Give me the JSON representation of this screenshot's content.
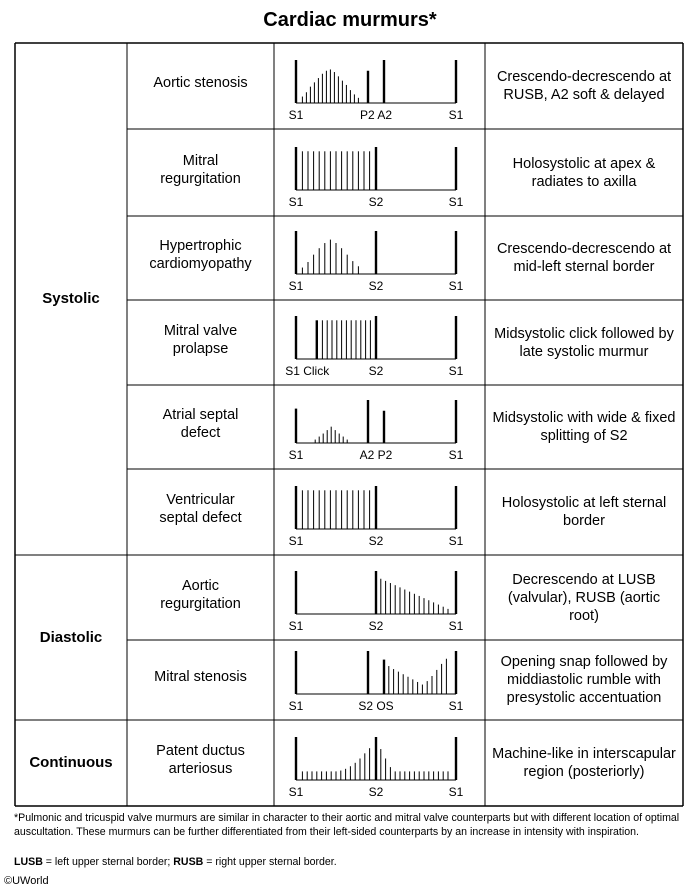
{
  "title": "Cardiac murmurs*",
  "groups": [
    {
      "label": "Systolic",
      "rows": [
        0,
        1,
        2,
        3,
        4,
        5
      ]
    },
    {
      "label": "Diastolic",
      "rows": [
        6,
        7
      ]
    },
    {
      "label": "Continuous",
      "rows": [
        8
      ]
    }
  ],
  "rows": [
    {
      "name": "Aortic stenosis",
      "description": "Crescendo-decrescendo at RUSB, A2 soft & delayed",
      "waveform": {
        "lines": [
          {
            "x": 0,
            "h": 1
          },
          {
            "x": 0.45,
            "h": 0.75
          },
          {
            "x": 0.55,
            "h": 1
          },
          {
            "x": 1,
            "h": 1
          }
        ],
        "murmur": [
          {
            "x": 0.04,
            "h": 0.15
          },
          {
            "x": 0.065,
            "h": 0.25
          },
          {
            "x": 0.09,
            "h": 0.38
          },
          {
            "x": 0.115,
            "h": 0.48
          },
          {
            "x": 0.14,
            "h": 0.58
          },
          {
            "x": 0.165,
            "h": 0.68
          },
          {
            "x": 0.19,
            "h": 0.75
          },
          {
            "x": 0.215,
            "h": 0.78
          },
          {
            "x": 0.24,
            "h": 0.72
          },
          {
            "x": 0.265,
            "h": 0.62
          },
          {
            "x": 0.29,
            "h": 0.52
          },
          {
            "x": 0.315,
            "h": 0.42
          },
          {
            "x": 0.34,
            "h": 0.3
          },
          {
            "x": 0.365,
            "h": 0.2
          },
          {
            "x": 0.39,
            "h": 0.12
          }
        ],
        "labels": [
          {
            "text": "S1",
            "x": 0
          },
          {
            "text": "P2 A2",
            "x": 0.5
          },
          {
            "text": "S1",
            "x": 1
          }
        ]
      }
    },
    {
      "name": "Mitral regurgitation",
      "description": "Holosystolic at apex & radiates to axilla",
      "waveform": {
        "lines": [
          {
            "x": 0,
            "h": 1
          },
          {
            "x": 0.5,
            "h": 1
          },
          {
            "x": 1,
            "h": 1
          }
        ],
        "murmur": [
          {
            "x": 0.04,
            "h": 0.9
          },
          {
            "x": 0.075,
            "h": 0.9
          },
          {
            "x": 0.11,
            "h": 0.9
          },
          {
            "x": 0.145,
            "h": 0.9
          },
          {
            "x": 0.18,
            "h": 0.9
          },
          {
            "x": 0.215,
            "h": 0.9
          },
          {
            "x": 0.25,
            "h": 0.9
          },
          {
            "x": 0.285,
            "h": 0.9
          },
          {
            "x": 0.32,
            "h": 0.9
          },
          {
            "x": 0.355,
            "h": 0.9
          },
          {
            "x": 0.39,
            "h": 0.9
          },
          {
            "x": 0.425,
            "h": 0.9
          },
          {
            "x": 0.46,
            "h": 0.9
          }
        ],
        "labels": [
          {
            "text": "S1",
            "x": 0
          },
          {
            "text": "S2",
            "x": 0.5
          },
          {
            "text": "S1",
            "x": 1
          }
        ]
      }
    },
    {
      "name": "Hypertrophic cardiomyopathy",
      "description": "Crescendo-decrescendo at mid-left sternal border",
      "waveform": {
        "lines": [
          {
            "x": 0,
            "h": 1
          },
          {
            "x": 0.5,
            "h": 1
          },
          {
            "x": 1,
            "h": 1
          }
        ],
        "murmur": [
          {
            "x": 0.04,
            "h": 0.15
          },
          {
            "x": 0.075,
            "h": 0.28
          },
          {
            "x": 0.11,
            "h": 0.45
          },
          {
            "x": 0.145,
            "h": 0.6
          },
          {
            "x": 0.18,
            "h": 0.72
          },
          {
            "x": 0.215,
            "h": 0.8
          },
          {
            "x": 0.25,
            "h": 0.72
          },
          {
            "x": 0.285,
            "h": 0.6
          },
          {
            "x": 0.32,
            "h": 0.45
          },
          {
            "x": 0.355,
            "h": 0.3
          },
          {
            "x": 0.39,
            "h": 0.18
          }
        ],
        "labels": [
          {
            "text": "S1",
            "x": 0
          },
          {
            "text": "S2",
            "x": 0.5
          },
          {
            "text": "S1",
            "x": 1
          }
        ]
      }
    },
    {
      "name": "Mitral valve prolapse",
      "description": "Midsystolic click followed by late systolic murmur",
      "waveform": {
        "lines": [
          {
            "x": 0,
            "h": 1
          },
          {
            "x": 0.13,
            "h": 0.9
          },
          {
            "x": 0.5,
            "h": 1
          },
          {
            "x": 1,
            "h": 1
          }
        ],
        "murmur": [
          {
            "x": 0.165,
            "h": 0.9
          },
          {
            "x": 0.195,
            "h": 0.9
          },
          {
            "x": 0.225,
            "h": 0.9
          },
          {
            "x": 0.255,
            "h": 0.9
          },
          {
            "x": 0.285,
            "h": 0.9
          },
          {
            "x": 0.315,
            "h": 0.9
          },
          {
            "x": 0.345,
            "h": 0.9
          },
          {
            "x": 0.375,
            "h": 0.9
          },
          {
            "x": 0.405,
            "h": 0.9
          },
          {
            "x": 0.435,
            "h": 0.9
          },
          {
            "x": 0.465,
            "h": 0.9
          }
        ],
        "labels": [
          {
            "text": "S1 Click",
            "x": 0.07
          },
          {
            "text": "S2",
            "x": 0.5
          },
          {
            "text": "S1",
            "x": 1
          }
        ]
      }
    },
    {
      "name": "Atrial septal defect",
      "description": "Midsystolic with wide & fixed splitting of S2",
      "waveform": {
        "lines": [
          {
            "x": 0,
            "h": 0.8
          },
          {
            "x": 0.45,
            "h": 1
          },
          {
            "x": 0.55,
            "h": 0.75
          },
          {
            "x": 1,
            "h": 1
          }
        ],
        "murmur": [
          {
            "x": 0.12,
            "h": 0.08
          },
          {
            "x": 0.145,
            "h": 0.15
          },
          {
            "x": 0.17,
            "h": 0.22
          },
          {
            "x": 0.195,
            "h": 0.3
          },
          {
            "x": 0.22,
            "h": 0.38
          },
          {
            "x": 0.245,
            "h": 0.3
          },
          {
            "x": 0.27,
            "h": 0.22
          },
          {
            "x": 0.295,
            "h": 0.15
          },
          {
            "x": 0.32,
            "h": 0.08
          }
        ],
        "labels": [
          {
            "text": "S1",
            "x": 0
          },
          {
            "text": "A2 P2",
            "x": 0.5
          },
          {
            "text": "S1",
            "x": 1
          }
        ]
      }
    },
    {
      "name": "Ventricular septal defect",
      "description": "Holosystolic at left sternal border",
      "waveform": {
        "lines": [
          {
            "x": 0,
            "h": 1
          },
          {
            "x": 0.5,
            "h": 1
          },
          {
            "x": 1,
            "h": 1
          }
        ],
        "murmur": [
          {
            "x": 0.04,
            "h": 0.9
          },
          {
            "x": 0.075,
            "h": 0.9
          },
          {
            "x": 0.11,
            "h": 0.9
          },
          {
            "x": 0.145,
            "h": 0.9
          },
          {
            "x": 0.18,
            "h": 0.9
          },
          {
            "x": 0.215,
            "h": 0.9
          },
          {
            "x": 0.25,
            "h": 0.9
          },
          {
            "x": 0.285,
            "h": 0.9
          },
          {
            "x": 0.32,
            "h": 0.9
          },
          {
            "x": 0.355,
            "h": 0.9
          },
          {
            "x": 0.39,
            "h": 0.9
          },
          {
            "x": 0.425,
            "h": 0.9
          },
          {
            "x": 0.46,
            "h": 0.9
          }
        ],
        "labels": [
          {
            "text": "S1",
            "x": 0
          },
          {
            "text": "S2",
            "x": 0.5
          },
          {
            "text": "S1",
            "x": 1
          }
        ]
      }
    },
    {
      "name": "Aortic regurgitation",
      "description": "Decrescendo at LUSB (valvular), RUSB (aortic root)",
      "waveform": {
        "lines": [
          {
            "x": 0,
            "h": 1
          },
          {
            "x": 0.5,
            "h": 1
          },
          {
            "x": 1,
            "h": 1
          }
        ],
        "murmur": [
          {
            "x": 0.53,
            "h": 0.82
          },
          {
            "x": 0.56,
            "h": 0.77
          },
          {
            "x": 0.59,
            "h": 0.72
          },
          {
            "x": 0.62,
            "h": 0.67
          },
          {
            "x": 0.65,
            "h": 0.62
          },
          {
            "x": 0.68,
            "h": 0.57
          },
          {
            "x": 0.71,
            "h": 0.52
          },
          {
            "x": 0.74,
            "h": 0.47
          },
          {
            "x": 0.77,
            "h": 0.42
          },
          {
            "x": 0.8,
            "h": 0.37
          },
          {
            "x": 0.83,
            "h": 0.32
          },
          {
            "x": 0.86,
            "h": 0.27
          },
          {
            "x": 0.89,
            "h": 0.22
          },
          {
            "x": 0.92,
            "h": 0.17
          },
          {
            "x": 0.95,
            "h": 0.12
          }
        ],
        "labels": [
          {
            "text": "S1",
            "x": 0
          },
          {
            "text": "S2",
            "x": 0.5
          },
          {
            "text": "S1",
            "x": 1
          }
        ]
      }
    },
    {
      "name": "Mitral stenosis",
      "description": "Opening snap followed by middiastolic rumble with presystolic accentuation",
      "waveform": {
        "lines": [
          {
            "x": 0,
            "h": 1
          },
          {
            "x": 0.45,
            "h": 1
          },
          {
            "x": 0.55,
            "h": 0.8
          },
          {
            "x": 1,
            "h": 1
          }
        ],
        "murmur": [
          {
            "x": 0.58,
            "h": 0.65
          },
          {
            "x": 0.61,
            "h": 0.58
          },
          {
            "x": 0.64,
            "h": 0.52
          },
          {
            "x": 0.67,
            "h": 0.46
          },
          {
            "x": 0.7,
            "h": 0.4
          },
          {
            "x": 0.73,
            "h": 0.34
          },
          {
            "x": 0.76,
            "h": 0.28
          },
          {
            "x": 0.79,
            "h": 0.22
          },
          {
            "x": 0.82,
            "h": 0.3
          },
          {
            "x": 0.85,
            "h": 0.42
          },
          {
            "x": 0.88,
            "h": 0.56
          },
          {
            "x": 0.91,
            "h": 0.7
          },
          {
            "x": 0.94,
            "h": 0.82
          }
        ],
        "labels": [
          {
            "text": "S1",
            "x": 0
          },
          {
            "text": "S2 OS",
            "x": 0.5
          },
          {
            "text": "S1",
            "x": 1
          }
        ]
      }
    },
    {
      "name": "Patent ductus arteriosus",
      "description": "Machine-like in interscapular region (posteriorly)",
      "waveform": {
        "lines": [
          {
            "x": 0,
            "h": 1
          },
          {
            "x": 0.5,
            "h": 1
          },
          {
            "x": 1,
            "h": 1
          }
        ],
        "murmur": [
          {
            "x": 0.04,
            "h": 0.2
          },
          {
            "x": 0.07,
            "h": 0.2
          },
          {
            "x": 0.1,
            "h": 0.2
          },
          {
            "x": 0.13,
            "h": 0.2
          },
          {
            "x": 0.16,
            "h": 0.2
          },
          {
            "x": 0.19,
            "h": 0.2
          },
          {
            "x": 0.22,
            "h": 0.2
          },
          {
            "x": 0.25,
            "h": 0.2
          },
          {
            "x": 0.28,
            "h": 0.22
          },
          {
            "x": 0.31,
            "h": 0.26
          },
          {
            "x": 0.34,
            "h": 0.32
          },
          {
            "x": 0.37,
            "h": 0.4
          },
          {
            "x": 0.4,
            "h": 0.5
          },
          {
            "x": 0.43,
            "h": 0.62
          },
          {
            "x": 0.46,
            "h": 0.74
          },
          {
            "x": 0.53,
            "h": 0.72
          },
          {
            "x": 0.56,
            "h": 0.5
          },
          {
            "x": 0.59,
            "h": 0.3
          },
          {
            "x": 0.62,
            "h": 0.2
          },
          {
            "x": 0.65,
            "h": 0.2
          },
          {
            "x": 0.68,
            "h": 0.2
          },
          {
            "x": 0.71,
            "h": 0.2
          },
          {
            "x": 0.74,
            "h": 0.2
          },
          {
            "x": 0.77,
            "h": 0.2
          },
          {
            "x": 0.8,
            "h": 0.2
          },
          {
            "x": 0.83,
            "h": 0.2
          },
          {
            "x": 0.86,
            "h": 0.2
          },
          {
            "x": 0.89,
            "h": 0.2
          },
          {
            "x": 0.92,
            "h": 0.2
          },
          {
            "x": 0.95,
            "h": 0.2
          }
        ],
        "labels": [
          {
            "text": "S1",
            "x": 0
          },
          {
            "text": "S2",
            "x": 0.5
          },
          {
            "text": "S1",
            "x": 1
          }
        ]
      }
    }
  ],
  "footnote": "*Pulmonic and tricuspid valve murmurs are similar in character to their aortic and mitral valve counterparts but with different location of optimal auscultation.  These murmurs can be further differentiated from their left-sided counterparts by an increase in intensity with inspiration.",
  "legend": {
    "lusb_abbr": "LUSB",
    "lusb_text": " = left upper sternal border; ",
    "rusb_abbr": "RUSB",
    "rusb_text": " = right upper sternal border."
  },
  "copyright": "©UWorld"
}
